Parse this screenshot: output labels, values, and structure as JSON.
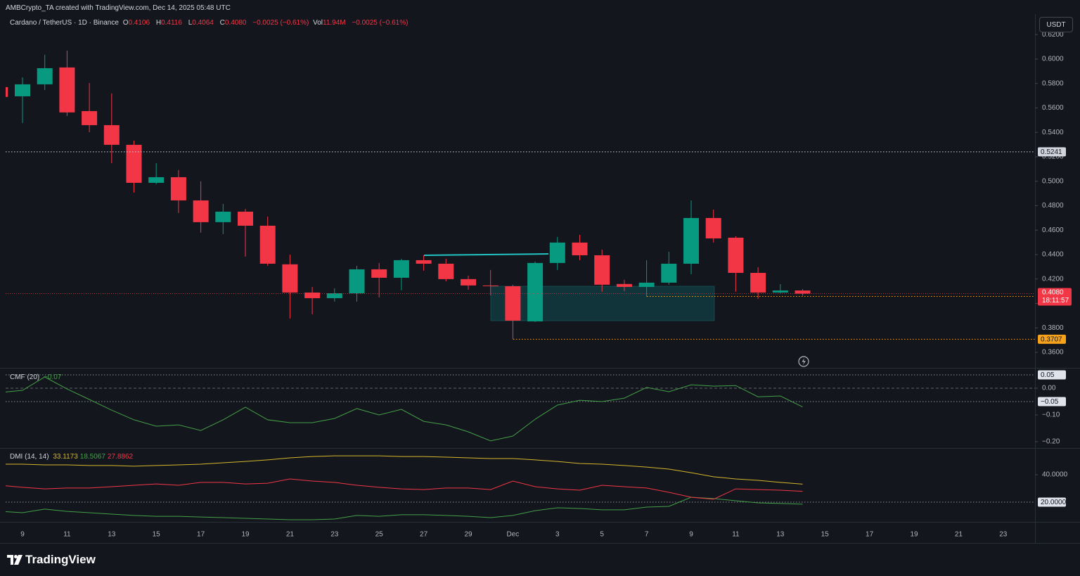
{
  "header": {
    "attribution": "AMBCrypto_TA created with TradingView.com, Dec 14, 2025 05:48 UTC"
  },
  "currency_button": "USDT",
  "footer_logo": "TradingView",
  "chart_data": [
    {
      "type": "candlestick",
      "title": "Cardano / TetherUS · 1D · Binance",
      "legend": {
        "open_label": "O",
        "open": "0.4106",
        "high_label": "H",
        "high": "0.4116",
        "low_label": "L",
        "low": "0.4064",
        "close_label": "C",
        "close": "0.4080",
        "change": "−0.0025 (−0.61%)",
        "volume_label": "Vol",
        "volume": "11.94M",
        "volume_change": "−0.0025 (−0.61%)"
      },
      "countdown": "18:11:57",
      "categories": [
        null,
        "9",
        null,
        "11",
        null,
        "13",
        null,
        "15",
        null,
        "17",
        null,
        "19",
        null,
        "21",
        null,
        "23",
        null,
        "25",
        null,
        "27",
        null,
        "29",
        null,
        "Dec",
        null,
        "3",
        null,
        "5",
        null,
        "7",
        null,
        "9",
        null,
        "11",
        null,
        "13",
        null,
        "15",
        null,
        "17",
        null,
        "19",
        null,
        "21",
        null,
        "23",
        null
      ],
      "open": [
        0.577,
        0.5695,
        0.5793,
        0.5931,
        0.5574,
        0.5459,
        0.5298,
        0.4987,
        0.5033,
        0.4843,
        0.4665,
        0.4751,
        0.4636,
        0.432,
        0.4089,
        0.4043,
        0.4083,
        0.4279,
        0.421,
        0.4354,
        0.4325,
        0.4199,
        0.4147,
        0.4141,
        0.3853,
        0.4331,
        0.4498,
        0.4394,
        0.4159,
        0.4135,
        0.417,
        0.4325,
        0.4699,
        0.4538,
        0.425,
        0.4089,
        0.4106,
        null,
        null,
        null,
        null,
        null,
        null,
        null,
        null,
        null,
        null
      ],
      "high": [
        0.58,
        0.585,
        0.6035,
        0.6069,
        0.5804,
        0.5718,
        0.5332,
        0.5148,
        0.5091,
        0.4999,
        0.4814,
        0.4774,
        0.4711,
        0.44,
        0.4135,
        0.4124,
        0.4308,
        0.4331,
        0.4366,
        0.4394,
        0.4366,
        0.4228,
        0.4274,
        0.4153,
        0.4343,
        0.4544,
        0.4561,
        0.444,
        0.4193,
        0.4354,
        0.4423,
        0.4843,
        0.4768,
        0.455,
        0.4297,
        0.4158,
        0.4116,
        null,
        null,
        null,
        null,
        null,
        null,
        null,
        null,
        null,
        null
      ],
      "low": [
        0.567,
        0.5476,
        0.5747,
        0.5534,
        0.5401,
        0.5148,
        0.4907,
        0.4976,
        0.474,
        0.4579,
        0.4567,
        0.4383,
        0.4308,
        0.3876,
        0.3911,
        0.4015,
        0.4015,
        0.4049,
        0.4107,
        0.4268,
        0.4181,
        0.4112,
        0.4066,
        0.3707,
        0.3848,
        0.4274,
        0.4354,
        0.4095,
        0.4101,
        0.4055,
        0.4153,
        0.4239,
        0.4498,
        0.4095,
        0.4038,
        0.4083,
        0.4064,
        null,
        null,
        null,
        null,
        null,
        null,
        null,
        null,
        null,
        null
      ],
      "close": [
        0.569,
        0.5793,
        0.5925,
        0.5563,
        0.5459,
        0.5298,
        0.4987,
        0.5033,
        0.4843,
        0.4665,
        0.4751,
        0.4636,
        0.4325,
        0.4089,
        0.4043,
        0.4083,
        0.4279,
        0.421,
        0.4354,
        0.4325,
        0.4199,
        0.4147,
        0.4141,
        0.3859,
        0.4331,
        0.4498,
        0.4394,
        0.4153,
        0.4135,
        0.417,
        0.4325,
        0.4699,
        0.4532,
        0.425,
        0.4089,
        0.4106,
        0.408,
        null,
        null,
        null,
        null,
        null,
        null,
        null,
        null,
        null,
        null
      ],
      "up_color": "#089981",
      "down_color": "#f23645",
      "ylim": [
        0.3473,
        0.6368
      ],
      "yticks": [
        {
          "value": 0.36,
          "label": "0.3600"
        },
        {
          "value": 0.38,
          "label": "0.3800"
        },
        {
          "value": 0.4,
          "label": "0.4000"
        },
        {
          "value": 0.42,
          "label": "0.4200"
        },
        {
          "value": 0.44,
          "label": "0.4400"
        },
        {
          "value": 0.46,
          "label": "0.4600"
        },
        {
          "value": 0.48,
          "label": "0.4800"
        },
        {
          "value": 0.5,
          "label": "0.5000"
        },
        {
          "value": 0.52,
          "label": "0.5200"
        },
        {
          "value": 0.54,
          "label": "0.5400"
        },
        {
          "value": 0.56,
          "label": "0.5600"
        },
        {
          "value": 0.58,
          "label": "0.5800"
        },
        {
          "value": 0.6,
          "label": "0.6000"
        },
        {
          "value": 0.62,
          "label": "0.6200"
        }
      ],
      "levels": [
        {
          "value": 0.5241,
          "color": "#d1d4dc"
        },
        {
          "value": 0.4057,
          "color": "#f7a21b"
        },
        {
          "value": 0.3707,
          "color": "#f7a21b"
        }
      ],
      "grid": false
    },
    {
      "type": "line",
      "title": "CMF (20)",
      "current_label": "−0.07",
      "series": [
        {
          "color": "#43a047",
          "values": [
            -0.016,
            -0.008,
            0.042,
            -0.003,
            -0.042,
            -0.082,
            -0.118,
            -0.142,
            -0.137,
            -0.158,
            -0.118,
            -0.071,
            -0.118,
            -0.129,
            -0.129,
            -0.113,
            -0.076,
            -0.1,
            -0.079,
            -0.124,
            -0.137,
            -0.163,
            -0.197,
            -0.179,
            -0.116,
            -0.063,
            -0.045,
            -0.05,
            -0.037,
            0.003,
            -0.013,
            0.013,
            0.008,
            0.01,
            -0.032,
            -0.029,
            -0.07,
            null,
            null,
            null,
            null,
            null,
            null,
            null,
            null,
            null,
            null
          ]
        }
      ],
      "ylim": [
        -0.221,
        0.0737
      ],
      "yticks": [
        {
          "value": 0,
          "label": "0.00"
        },
        {
          "value": -0.1,
          "label": "−0.10"
        },
        {
          "value": -0.2,
          "label": "−0.20"
        }
      ],
      "levels": [
        0.05,
        {
          "value": -0.05,
          "label": "−0.05"
        }
      ],
      "zero_line": true
    },
    {
      "type": "line",
      "title": "DMI (14, 14)",
      "series": [
        {
          "color": "#d4b62c",
          "values": [
            47.7,
            47.7,
            47.2,
            47.2,
            46.7,
            46.7,
            46.2,
            46.7,
            47.2,
            47.7,
            48.7,
            49.7,
            50.8,
            52.3,
            53.3,
            53.8,
            53.8,
            53.8,
            53.3,
            53.3,
            52.8,
            52.3,
            51.8,
            51.8,
            50.8,
            49.7,
            48.2,
            47.7,
            46.7,
            45.6,
            44.1,
            41.5,
            38.5,
            36.9,
            35.9,
            34.4,
            33.1173,
            null,
            null,
            null,
            null,
            null,
            null,
            null,
            null,
            null,
            null
          ]
        },
        {
          "color": "#43a047",
          "values": [
            13.3,
            12.3,
            14.9,
            13.3,
            12.3,
            11.3,
            10.3,
            9.7,
            9.7,
            9.2,
            8.7,
            8.2,
            7.7,
            7.2,
            7.2,
            7.7,
            10.3,
            9.7,
            10.8,
            10.8,
            10.3,
            9.7,
            8.7,
            10.3,
            13.8,
            15.9,
            15.4,
            14.4,
            14.4,
            16.4,
            16.9,
            23.6,
            22.6,
            21.0,
            19.5,
            19.0,
            18.5067,
            null,
            null,
            null,
            null,
            null,
            null,
            null,
            null,
            null,
            null
          ]
        },
        {
          "color": "#f23645",
          "values": [
            32.3,
            30.8,
            29.7,
            30.3,
            30.3,
            31.3,
            32.3,
            33.3,
            32.3,
            34.4,
            34.4,
            33.3,
            33.8,
            36.9,
            35.4,
            34.4,
            32.3,
            30.8,
            29.7,
            29.2,
            30.3,
            30.3,
            29.2,
            35.4,
            31.3,
            29.7,
            28.7,
            32.3,
            31.3,
            30.3,
            27.2,
            23.6,
            22.1,
            29.7,
            29.2,
            28.7,
            27.8862,
            null,
            null,
            null,
            null,
            null,
            null,
            null,
            null,
            null,
            null
          ]
        }
      ],
      "ylim": [
        6.15,
        58.97
      ],
      "yticks": [
        {
          "value": 40,
          "label": "40.0000"
        }
      ],
      "levels": [
        {
          "value": 20,
          "label": "20.0000"
        }
      ]
    }
  ]
}
